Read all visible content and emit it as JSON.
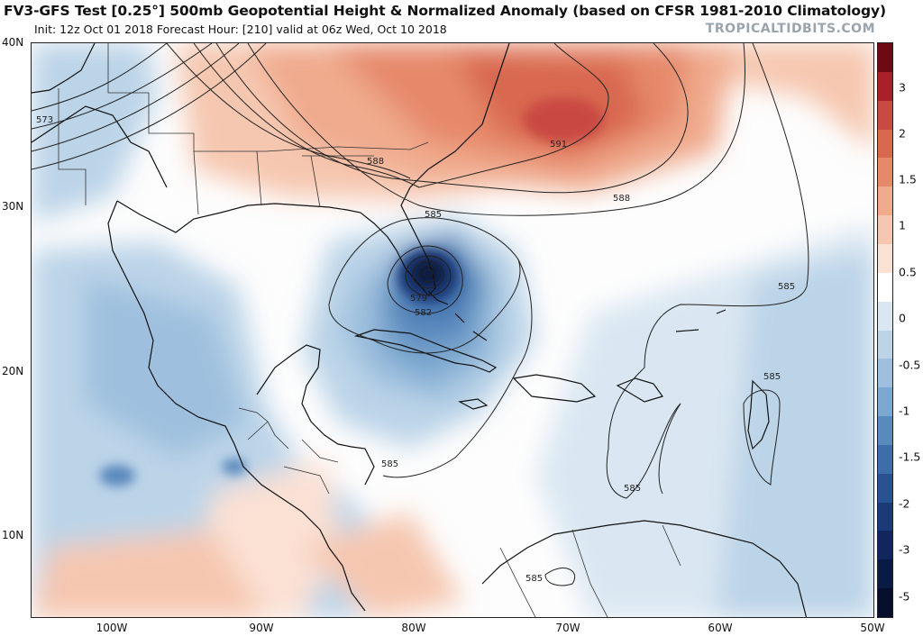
{
  "header": {
    "title": "FV3-GFS Test [0.25°] 500mb Geopotential Height & Normalized Anomaly (based on CFSR 1981-2010 Climatology)",
    "subtitle": "Init: 12z Oct 01 2018   Forecast Hour: [210]   valid at 06z Wed, Oct 10 2018",
    "brand": "TROPICALTIDBITS.COM"
  },
  "axes": {
    "lat_labels": [
      "40N",
      "30N",
      "20N",
      "10N"
    ],
    "lon_labels": [
      "100W",
      "90W",
      "80W",
      "70W",
      "60W",
      "50W"
    ]
  },
  "colorbar": {
    "labels": [
      "3",
      "2",
      "1.5",
      "1",
      "0.5",
      "0",
      "-0.5",
      "-1",
      "-1.5",
      "-2",
      "-3",
      "-5"
    ],
    "colors_top_to_bottom": [
      "#6e0a14",
      "#a8202a",
      "#c94a43",
      "#d8684f",
      "#e6896a",
      "#f0aa8d",
      "#f6c7b0",
      "#fbe1d4",
      "#ffffff",
      "#dae7f2",
      "#bcd4e8",
      "#9ec0de",
      "#7ca7cf",
      "#5a89bd",
      "#3e6da9",
      "#2a5192",
      "#1b3a78",
      "#10265c",
      "#091a45",
      "#050f2c"
    ]
  },
  "contours": {
    "labels": [
      "573",
      "588",
      "591",
      "588",
      "585",
      "579",
      "582",
      "585",
      "585",
      "585",
      "585",
      "585"
    ]
  }
}
